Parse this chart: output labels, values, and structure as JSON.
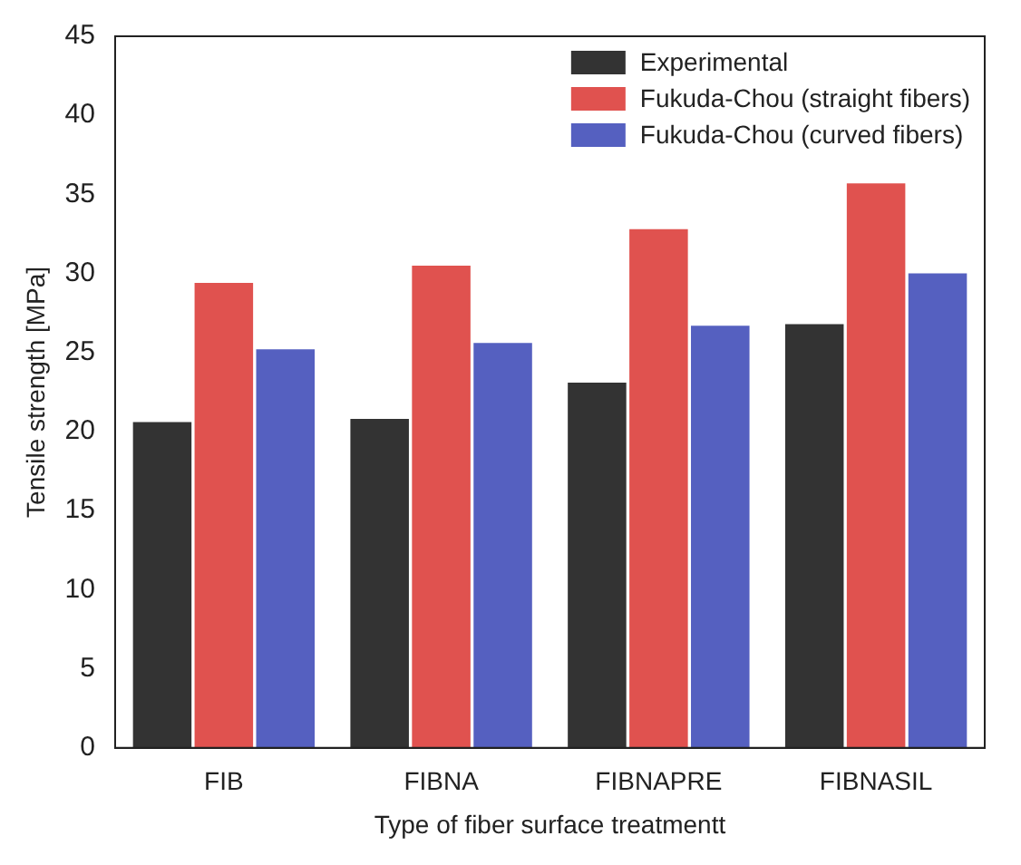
{
  "chart_data": {
    "type": "bar",
    "xlabel": "Type of fiber surface treatmentt",
    "ylabel": "Tensile strength [MPa]",
    "categories": [
      "FIB",
      "FIBNA",
      "FIBNAPRE",
      "FIBNASIL"
    ],
    "series": [
      {
        "name": "Experimental",
        "color": "#333333",
        "values": [
          20.6,
          20.8,
          23.1,
          26.8
        ]
      },
      {
        "name": "Fukuda-Chou (straight fibers)",
        "color": "#e0524f",
        "values": [
          29.4,
          30.5,
          32.8,
          35.7
        ]
      },
      {
        "name": "Fukuda-Chou (curved fibers)",
        "color": "#5560c0",
        "values": [
          25.2,
          25.6,
          26.7,
          30.0
        ]
      }
    ],
    "ylim": [
      0,
      45
    ],
    "yticks": [
      0,
      5,
      10,
      15,
      20,
      25,
      30,
      35,
      40,
      45
    ],
    "grid": false,
    "legend": "top right"
  }
}
